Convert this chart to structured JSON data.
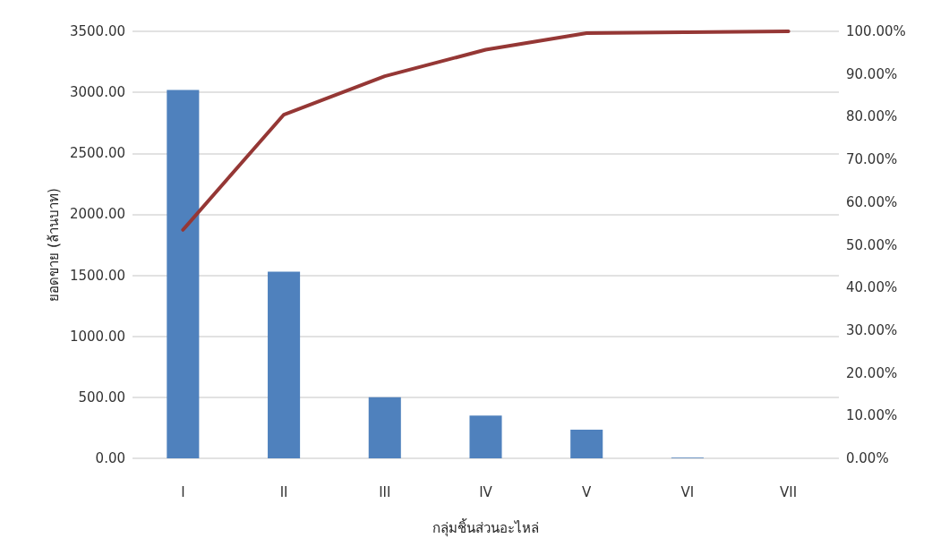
{
  "chart_data": {
    "type": "bar",
    "xlabel": "กลุ่มชิ้นส่วนอะไหล่",
    "ylabel": "ยอดขาย (ล้านบาท)",
    "categories": [
      "I",
      "II",
      "III",
      "IV",
      "V",
      "VI",
      "VII"
    ],
    "series": [
      {
        "color": "#4f81bd",
        "values": [
          3020,
          1530,
          500,
          350,
          235,
          5,
          0
        ]
      },
      {
        "type": "line",
        "axis": "y2",
        "color": "#953735",
        "values": [
          53.5,
          80.5,
          89.5,
          95.7,
          99.6,
          99.8,
          100
        ]
      }
    ],
    "ylim": [
      0,
      3500
    ],
    "yticks": [
      {
        "value": 0,
        "label": "0.00"
      },
      {
        "value": 500,
        "label": "500.00"
      },
      {
        "value": 1000,
        "label": "1000.00"
      },
      {
        "value": 1500,
        "label": "1500.00"
      },
      {
        "value": 2000,
        "label": "2000.00"
      },
      {
        "value": 2500,
        "label": "2500.00"
      },
      {
        "value": 3000,
        "label": "3000.00"
      },
      {
        "value": 3500,
        "label": "3500.00"
      }
    ],
    "y2lim": [
      0,
      100
    ],
    "y2ticks": [
      {
        "value": 0,
        "label": "0.00%"
      },
      {
        "value": 10,
        "label": "10.00%"
      },
      {
        "value": 20,
        "label": "20.00%"
      },
      {
        "value": 30,
        "label": "30.00%"
      },
      {
        "value": 40,
        "label": "40.00%"
      },
      {
        "value": 50,
        "label": "50.00%"
      },
      {
        "value": 60,
        "label": "60.00%"
      },
      {
        "value": 70,
        "label": "70.00%"
      },
      {
        "value": 80,
        "label": "80.00%"
      },
      {
        "value": 90,
        "label": "90.00%"
      },
      {
        "value": 100,
        "label": "100.00%"
      }
    ],
    "grid": "y",
    "marker": "none",
    "line_style": "solid"
  }
}
